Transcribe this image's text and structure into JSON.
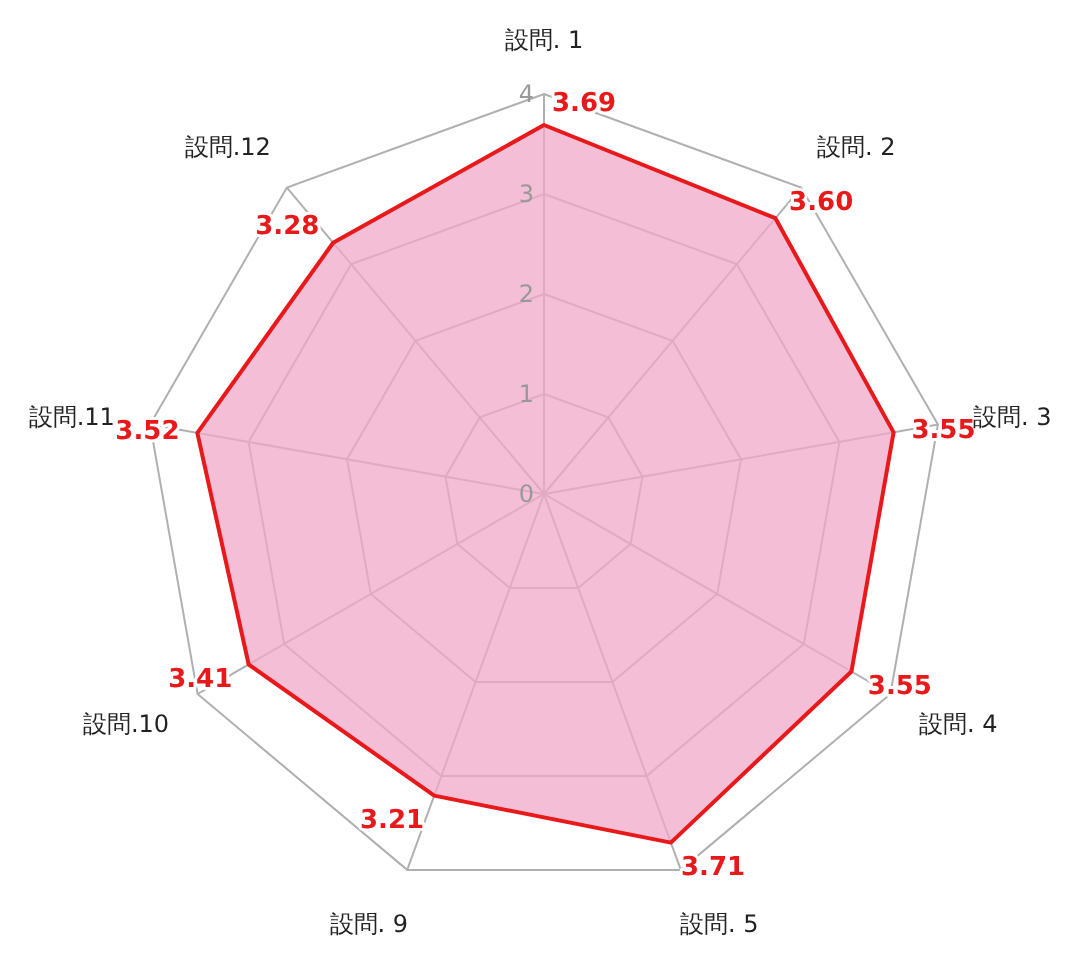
{
  "chart_data": {
    "type": "radar",
    "categories": [
      "設問. 1",
      "設問. 2",
      "設問. 3",
      "設問. 4",
      "設問. 5",
      "設問. 9",
      "設問.10",
      "設問.11",
      "設問.12"
    ],
    "series": [
      {
        "color": "#e8191a",
        "values": [
          3.69,
          3.6,
          3.55,
          3.55,
          3.71,
          3.21,
          3.41,
          3.52,
          3.28
        ],
        "value_labels": [
          "3.69",
          "3.60",
          "3.55",
          "3.55",
          "3.71",
          "3.21",
          "3.41",
          "3.52",
          "3.28"
        ]
      }
    ],
    "ylim": [
      0,
      4
    ],
    "yticks": [
      0,
      1,
      2,
      3,
      4
    ]
  }
}
